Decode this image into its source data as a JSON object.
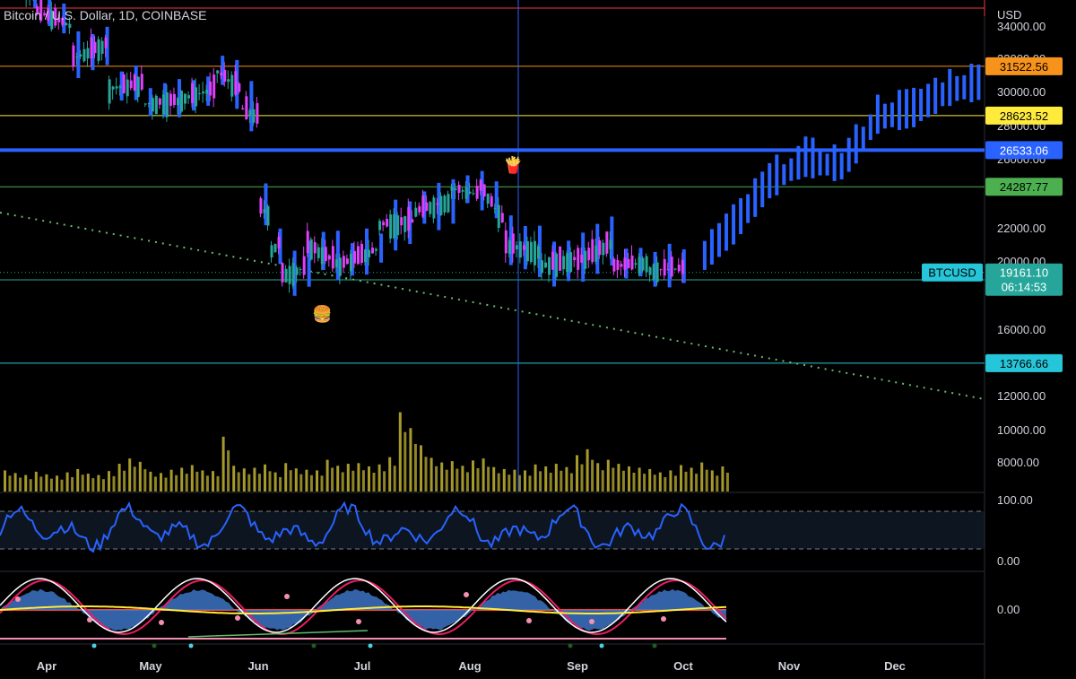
{
  "header": {
    "title": "Bitcoin / U.S. Dollar, 1D, COINBASE",
    "currency": "USD"
  },
  "chart_data": {
    "type": "candlestick",
    "symbol": "BTCUSD",
    "last_price": "19161.10",
    "countdown": "06:14:53",
    "x_months": [
      "Apr",
      "May",
      "Jun",
      "Jul",
      "Aug",
      "Sep",
      "Oct",
      "Nov",
      "Dec"
    ],
    "y_ticks": [
      "34000.00",
      "32000.00",
      "30000.00",
      "28000.00",
      "26000.00",
      "22000.00",
      "20000.00",
      "16000.00",
      "12000.00",
      "10000.00",
      "8000.00"
    ],
    "price_levels": [
      {
        "label": "31522.56",
        "value": 31522.56,
        "color": "#f7931a"
      },
      {
        "label": "28623.52",
        "value": 28623.52,
        "color": "#ffeb3b"
      },
      {
        "label": "26533.06",
        "value": 26533.06,
        "color": "#2962ff"
      },
      {
        "label": "24287.77",
        "value": 24287.77,
        "color": "#4caf50"
      },
      {
        "label": "18720.62",
        "value": 18720.62,
        "color": "#26a69a"
      },
      {
        "label": "13766.66",
        "value": 13766.66,
        "color": "#26c6da"
      }
    ],
    "top_level": {
      "value": 35200,
      "color": "#f23645"
    },
    "main_series": [
      {
        "d": 0,
        "o": 39000,
        "c": 37000
      },
      {
        "d": 10,
        "o": 36500,
        "c": 35000
      },
      {
        "d": 20,
        "o": 34000,
        "c": 32000
      },
      {
        "d": 30,
        "o": 33000,
        "c": 30200
      },
      {
        "d": 40,
        "o": 30500,
        "c": 29300
      },
      {
        "d": 50,
        "o": 29500,
        "c": 29600
      },
      {
        "d": 60,
        "o": 30200,
        "c": 31200
      },
      {
        "d": 67,
        "o": 30000,
        "c": 29000
      },
      {
        "d": 72,
        "o": 28500,
        "c": 23000
      },
      {
        "d": 75,
        "o": 22500,
        "c": 20500
      },
      {
        "d": 78,
        "o": 21000,
        "c": 19000
      },
      {
        "d": 85,
        "o": 19500,
        "c": 20800
      },
      {
        "d": 95,
        "o": 19500,
        "c": 19700
      },
      {
        "d": 105,
        "o": 20600,
        "c": 22000
      },
      {
        "d": 115,
        "o": 22200,
        "c": 22800
      },
      {
        "d": 125,
        "o": 23500,
        "c": 24200
      },
      {
        "d": 133,
        "o": 23800,
        "c": 24300
      },
      {
        "d": 140,
        "o": 22000,
        "c": 20800
      },
      {
        "d": 150,
        "o": 20400,
        "c": 19600
      },
      {
        "d": 160,
        "o": 20000,
        "c": 19800
      },
      {
        "d": 170,
        "o": 21000,
        "c": 19500
      },
      {
        "d": 180,
        "o": 19800,
        "c": 19300
      },
      {
        "d": 190,
        "o": 19400,
        "c": 19161
      }
    ],
    "projection_series": [
      {
        "d": 195,
        "v": 19800
      },
      {
        "d": 203,
        "v": 21500
      },
      {
        "d": 213,
        "v": 24200
      },
      {
        "d": 223,
        "v": 25600
      },
      {
        "d": 233,
        "v": 25200
      },
      {
        "d": 243,
        "v": 28200
      },
      {
        "d": 253,
        "v": 28600
      },
      {
        "d": 263,
        "v": 29800
      },
      {
        "d": 273,
        "v": 30200
      }
    ],
    "volume_ylim": [
      0,
      19000
    ],
    "volume_series": [
      3200,
      2800,
      2500,
      3000,
      2600,
      2400,
      2900,
      3400,
      2700,
      2500,
      3100,
      4200,
      5000,
      4500,
      3000,
      2800,
      3300,
      3600,
      4000,
      3200,
      3100,
      8300,
      3900,
      3500,
      3600,
      4100,
      2900,
      4300,
      3500,
      3300,
      3200,
      4800,
      3900,
      4200,
      4300,
      3800,
      4100,
      5200,
      12000,
      9600,
      7000,
      5100,
      4400,
      4600,
      3900,
      4700,
      5000,
      3700,
      3400,
      3300,
      3200,
      4100,
      3800,
      4200,
      3700,
      5500,
      6400,
      4300,
      4800,
      4200,
      3800,
      3600,
      3400,
      2900,
      3200,
      4000,
      3600,
      4400,
      3200,
      3800
    ],
    "oscillator": {
      "ylim": [
        0,
        100
      ],
      "upper": 80,
      "lower": 20,
      "labels": [
        "100.00",
        "0.00"
      ]
    },
    "wave": {
      "label": "0.00"
    },
    "crosshair_day": 137
  }
}
